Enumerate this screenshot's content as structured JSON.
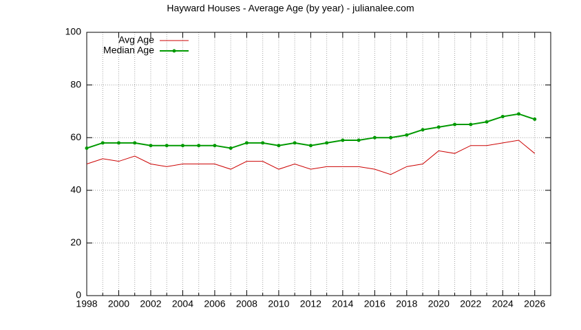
{
  "chart_data": {
    "type": "line",
    "title": "Hayward Houses - Average Age (by year) - julianalee.com",
    "x": [
      1998,
      1999,
      2000,
      2001,
      2002,
      2003,
      2004,
      2005,
      2006,
      2007,
      2008,
      2009,
      2010,
      2011,
      2012,
      2013,
      2014,
      2015,
      2016,
      2017,
      2018,
      2019,
      2020,
      2021,
      2022,
      2023,
      2024,
      2025,
      2026
    ],
    "series": [
      {
        "name": "Avg Age",
        "color": "#cc0000",
        "values": [
          50,
          52,
          51,
          53,
          50,
          49,
          50,
          50,
          50,
          48,
          51,
          51,
          48,
          50,
          48,
          49,
          49,
          49,
          48,
          46,
          49,
          50,
          55,
          54,
          57,
          57,
          58,
          59,
          54
        ]
      },
      {
        "name": "Median Age",
        "color": "#009900",
        "values": [
          56,
          58,
          58,
          58,
          57,
          57,
          57,
          57,
          57,
          56,
          58,
          58,
          57,
          58,
          57,
          58,
          59,
          59,
          60,
          60,
          61,
          63,
          64,
          65,
          65,
          66,
          68,
          69,
          67
        ]
      }
    ],
    "xlim": [
      1998,
      2027
    ],
    "xticks": [
      1998,
      2000,
      2002,
      2004,
      2006,
      2008,
      2010,
      2012,
      2014,
      2016,
      2018,
      2020,
      2022,
      2024,
      2026
    ],
    "xminorticks": [
      1999,
      2001,
      2003,
      2005,
      2007,
      2009,
      2011,
      2013,
      2015,
      2017,
      2019,
      2021,
      2023,
      2025,
      2027
    ],
    "ylim": [
      0,
      100
    ],
    "yticks": [
      0,
      20,
      40,
      60,
      80,
      100
    ],
    "grid": true,
    "legend": "top-left"
  }
}
